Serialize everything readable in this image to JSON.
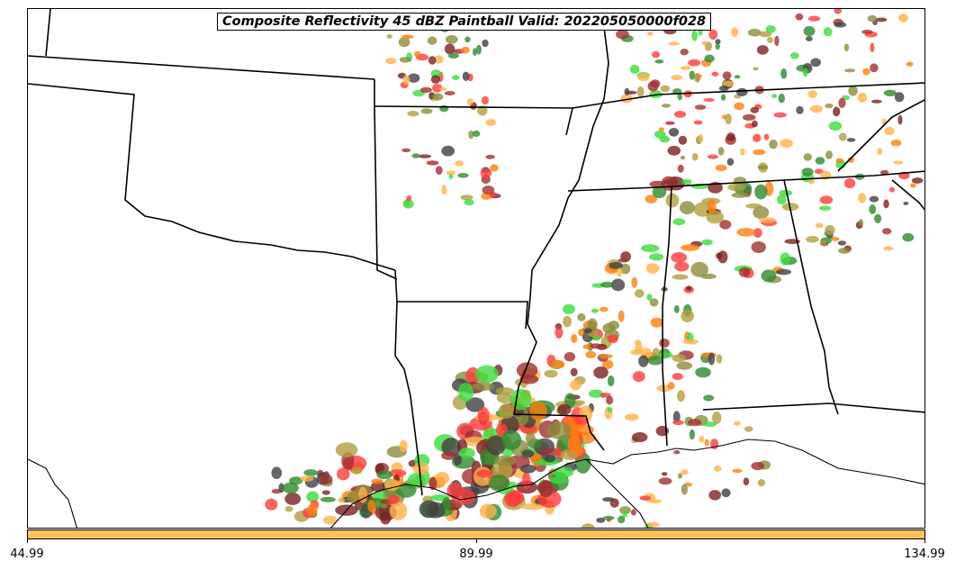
{
  "title": "Composite Reflectivity 45 dBZ Paintball Valid: 202205050000f028",
  "colorbar": {
    "color": "#ffc060",
    "ticks": [
      "44.99",
      "89.99",
      "134.99"
    ]
  },
  "colors": {
    "member_palette": [
      "#ff3b3b",
      "#ff7f0e",
      "#ffb347",
      "#2e8b2e",
      "#3cdc3c",
      "#a03030",
      "#7a2020",
      "#b0a040",
      "#8c8c3c",
      "#404040"
    ],
    "border": "#000000",
    "background": "#ffffff"
  }
}
